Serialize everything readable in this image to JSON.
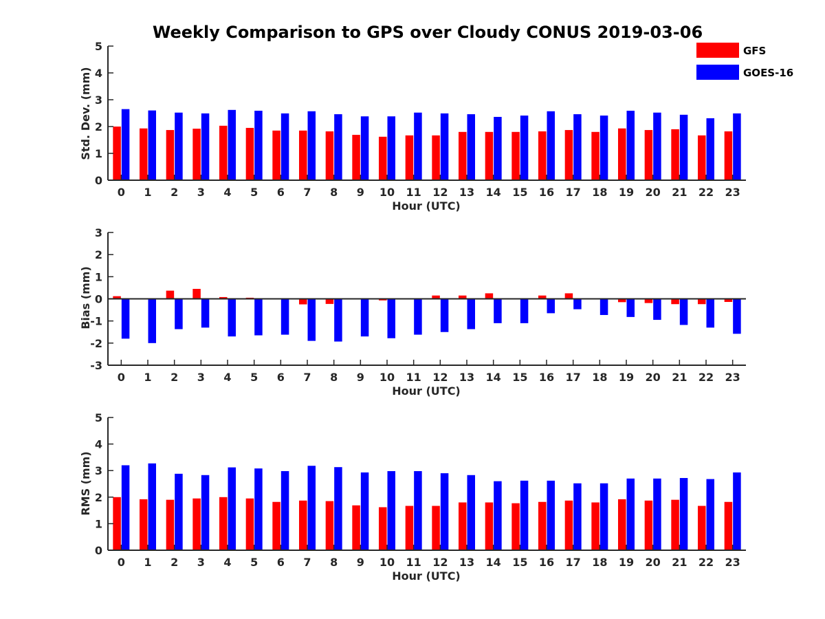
{
  "title": "Weekly Comparison to GPS over Cloudy CONUS 2019-03-06",
  "colors": {
    "GFS": "#ff0000",
    "GOES-16": "#0000ff",
    "axis": "#262626"
  },
  "legend": {
    "placement": "top-right",
    "entries": [
      {
        "name": "GFS",
        "color": "#ff0000"
      },
      {
        "name": "GOES-16",
        "color": "#0000ff"
      }
    ]
  },
  "chart_data": [
    {
      "type": "bar",
      "ylabel": "Std. Dev. (mm)",
      "xlabel": "Hour (UTC)",
      "ylim": [
        0,
        5
      ],
      "yticks": [
        "0",
        "1",
        "2",
        "3",
        "4",
        "5"
      ],
      "categories": [
        "0",
        "1",
        "2",
        "3",
        "4",
        "5",
        "6",
        "7",
        "8",
        "9",
        "10",
        "11",
        "12",
        "13",
        "14",
        "15",
        "16",
        "17",
        "18",
        "19",
        "20",
        "21",
        "22",
        "23"
      ],
      "series": [
        {
          "name": "GFS",
          "values": [
            2.0,
            1.93,
            1.87,
            1.92,
            2.03,
            1.95,
            1.85,
            1.85,
            1.82,
            1.69,
            1.62,
            1.67,
            1.67,
            1.8,
            1.8,
            1.8,
            1.82,
            1.87,
            1.8,
            1.93,
            1.87,
            1.9,
            1.67,
            1.82
          ]
        },
        {
          "name": "GOES-16",
          "values": [
            2.65,
            2.6,
            2.52,
            2.49,
            2.62,
            2.59,
            2.49,
            2.57,
            2.46,
            2.38,
            2.38,
            2.52,
            2.49,
            2.46,
            2.36,
            2.41,
            2.57,
            2.46,
            2.41,
            2.59,
            2.52,
            2.44,
            2.31,
            2.49
          ]
        }
      ]
    },
    {
      "type": "bar",
      "ylabel": "Bias (mm)",
      "xlabel": "Hour (UTC)",
      "ylim": [
        -3,
        3
      ],
      "yticks": [
        "-3",
        "-2",
        "-1",
        "0",
        "1",
        "2",
        "3"
      ],
      "categories": [
        "0",
        "1",
        "2",
        "3",
        "4",
        "5",
        "6",
        "7",
        "8",
        "9",
        "10",
        "11",
        "12",
        "13",
        "14",
        "15",
        "16",
        "17",
        "18",
        "19",
        "20",
        "21",
        "22",
        "23"
      ],
      "series": [
        {
          "name": "GFS",
          "values": [
            0.12,
            0.02,
            0.37,
            0.45,
            0.08,
            0.05,
            -0.02,
            -0.25,
            -0.23,
            0.0,
            -0.07,
            0.02,
            0.15,
            0.15,
            0.25,
            0.0,
            0.15,
            0.25,
            0.0,
            -0.15,
            -0.19,
            -0.24,
            -0.24,
            -0.14
          ]
        },
        {
          "name": "GOES-16",
          "values": [
            -1.8,
            -2.0,
            -1.37,
            -1.3,
            -1.7,
            -1.65,
            -1.62,
            -1.9,
            -1.93,
            -1.7,
            -1.78,
            -1.62,
            -1.5,
            -1.37,
            -1.1,
            -1.1,
            -0.65,
            -0.47,
            -0.73,
            -0.82,
            -0.95,
            -1.18,
            -1.3,
            -1.58
          ]
        }
      ]
    },
    {
      "type": "bar",
      "ylabel": "RMS (mm)",
      "xlabel": "Hour (UTC)",
      "ylim": [
        0,
        5
      ],
      "yticks": [
        "0",
        "1",
        "2",
        "3",
        "4",
        "5"
      ],
      "categories": [
        "0",
        "1",
        "2",
        "3",
        "4",
        "5",
        "6",
        "7",
        "8",
        "9",
        "10",
        "11",
        "12",
        "13",
        "14",
        "15",
        "16",
        "17",
        "18",
        "19",
        "20",
        "21",
        "22",
        "23"
      ],
      "series": [
        {
          "name": "GFS",
          "values": [
            2.0,
            1.92,
            1.9,
            1.95,
            2.0,
            1.95,
            1.82,
            1.87,
            1.85,
            1.69,
            1.62,
            1.67,
            1.67,
            1.8,
            1.8,
            1.77,
            1.82,
            1.87,
            1.8,
            1.92,
            1.87,
            1.9,
            1.67,
            1.82
          ]
        },
        {
          "name": "GOES-16",
          "values": [
            3.2,
            3.27,
            2.88,
            2.83,
            3.12,
            3.08,
            2.98,
            3.18,
            3.13,
            2.93,
            2.98,
            2.98,
            2.9,
            2.83,
            2.6,
            2.62,
            2.62,
            2.52,
            2.52,
            2.7,
            2.7,
            2.72,
            2.68,
            2.93
          ]
        }
      ]
    }
  ]
}
